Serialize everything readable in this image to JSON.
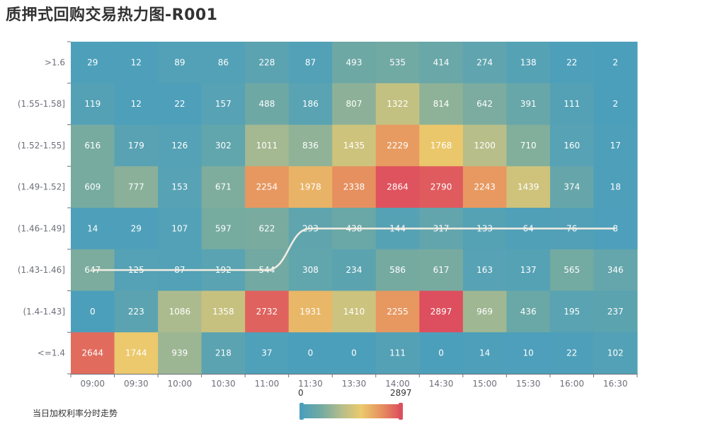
{
  "title": "质押式回购交易热力图-R001",
  "legend": {
    "series_label": "当日加权利率分时走势"
  },
  "colors": [
    "#4c9fbb",
    "#74aaa1",
    "#b4bd8b",
    "#ebca6c",
    "#e6925f",
    "#dd4f5e"
  ],
  "line_color": "#f3ede1",
  "chart_data": {
    "type": "heatmap",
    "title": "质押式回购交易热力图-R001",
    "x": [
      "09:00",
      "09:30",
      "10:00",
      "10:30",
      "11:00",
      "11:30",
      "13:30",
      "14:00",
      "14:30",
      "15:00",
      "15:30",
      "16:00",
      "16:30"
    ],
    "y": [
      ">1.6",
      "(1.55-1.58]",
      "(1.52-1.55]",
      "(1.49-1.52]",
      "(1.46-1.49]",
      "(1.43-1.46]",
      "(1.4-1.43]",
      "<=1.4"
    ],
    "values": [
      [
        29,
        12,
        89,
        86,
        228,
        87,
        493,
        535,
        414,
        274,
        138,
        22,
        2
      ],
      [
        119,
        12,
        22,
        157,
        488,
        186,
        807,
        1322,
        814,
        642,
        391,
        111,
        2
      ],
      [
        616,
        179,
        126,
        302,
        1011,
        836,
        1435,
        2229,
        1768,
        1200,
        710,
        160,
        17
      ],
      [
        609,
        777,
        153,
        671,
        2254,
        1978,
        2338,
        2864,
        2790,
        2243,
        1439,
        374,
        18
      ],
      [
        14,
        29,
        107,
        597,
        622,
        293,
        438,
        144,
        317,
        133,
        64,
        76,
        8
      ],
      [
        647,
        125,
        87,
        192,
        544,
        308,
        234,
        586,
        617,
        163,
        137,
        565,
        346
      ],
      [
        0,
        223,
        1086,
        1358,
        2732,
        1931,
        1410,
        2255,
        2897,
        969,
        436,
        195,
        237
      ],
      [
        2644,
        1744,
        939,
        218,
        37,
        0,
        0,
        111,
        0,
        14,
        10,
        22,
        102
      ]
    ],
    "visual_map": {
      "min": 0,
      "max": 2897
    },
    "trend_line": {
      "name": "当日加权利率分时走势",
      "points": [
        [
          "09:00",
          "(1.43-1.46]"
        ],
        [
          "09:30",
          "(1.43-1.46]"
        ],
        [
          "10:00",
          "(1.43-1.46]"
        ],
        [
          "10:30",
          "(1.43-1.46]"
        ],
        [
          "11:00",
          "(1.43-1.46]"
        ],
        [
          "11:30",
          "(1.46-1.49]"
        ],
        [
          "13:30",
          "(1.46-1.49]"
        ],
        [
          "14:00",
          "(1.46-1.49]"
        ],
        [
          "14:30",
          "(1.46-1.49]"
        ],
        [
          "15:00",
          "(1.46-1.49]"
        ],
        [
          "15:30",
          "(1.46-1.49]"
        ],
        [
          "16:00",
          "(1.46-1.49]"
        ],
        [
          "16:30",
          "(1.46-1.49]"
        ]
      ]
    }
  }
}
